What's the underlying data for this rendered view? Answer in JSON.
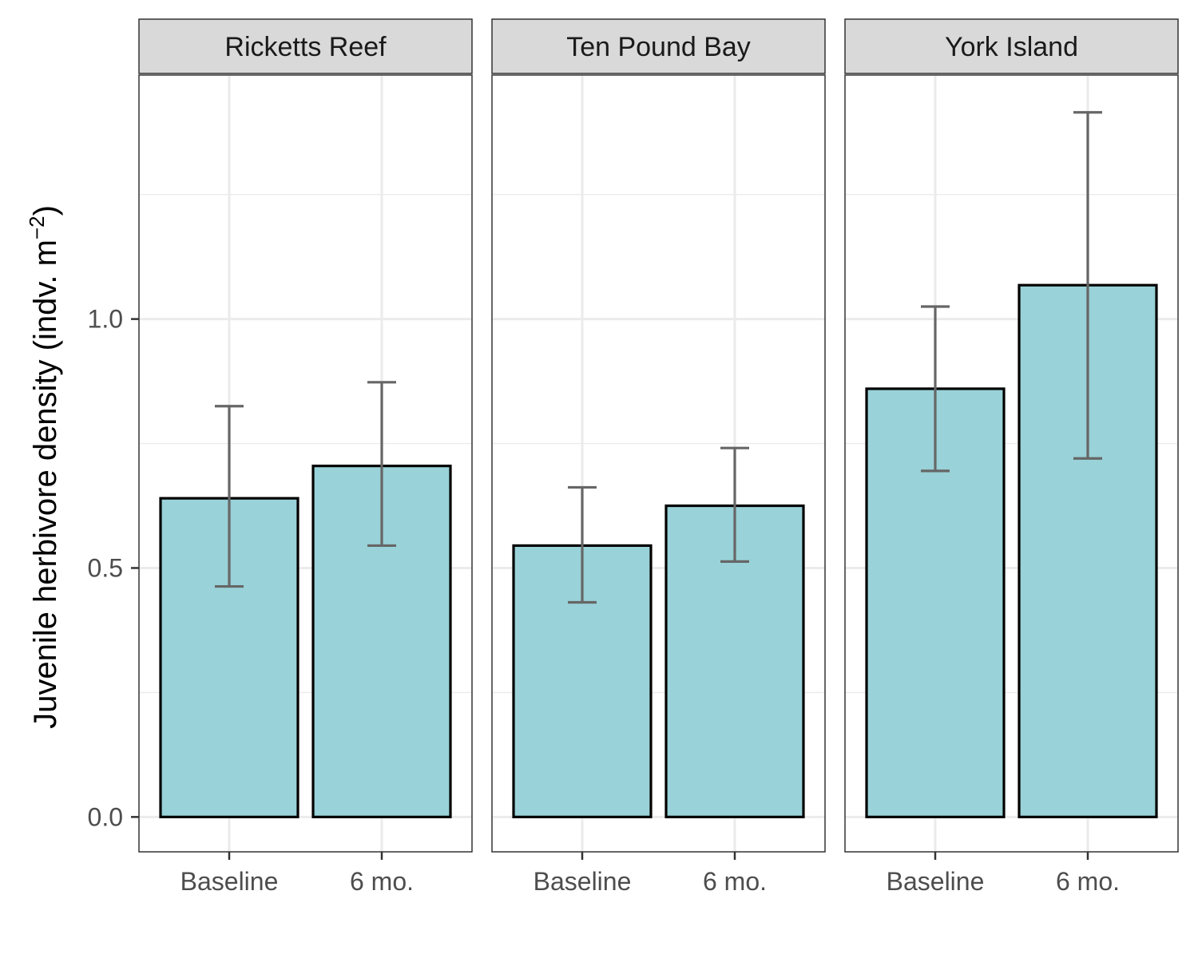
{
  "chart_data": {
    "type": "bar",
    "facet_variable": "site",
    "ylabel": "Juvenile herbivore density (indv. m",
    "ylabel_superscript": "−2",
    "ylabel_suffix": ")",
    "xlabel": "",
    "ylim": [
      -0.07,
      1.49
    ],
    "y_ticks": [
      0.0,
      0.5,
      1.0
    ],
    "y_tick_labels": [
      "0.0",
      "0.5",
      "1.0"
    ],
    "categories": [
      "Baseline",
      "6 mo."
    ],
    "grid": true,
    "bar_fill": "#99d2d8",
    "bar_outline": "#000000",
    "errorbar_color": "#666666",
    "strip_fill": "#d9d9d9",
    "panels": [
      {
        "title": "Ricketts Reef",
        "values": [
          0.64,
          0.705
        ],
        "error_low": [
          0.463,
          0.545
        ],
        "error_high": [
          0.825,
          0.873
        ]
      },
      {
        "title": "Ten Pound Bay",
        "values": [
          0.545,
          0.625
        ],
        "error_low": [
          0.431,
          0.513
        ],
        "error_high": [
          0.662,
          0.741
        ]
      },
      {
        "title": "York Island",
        "values": [
          0.86,
          1.068
        ],
        "error_low": [
          0.695,
          0.72
        ],
        "error_high": [
          1.025,
          1.415
        ]
      }
    ]
  }
}
